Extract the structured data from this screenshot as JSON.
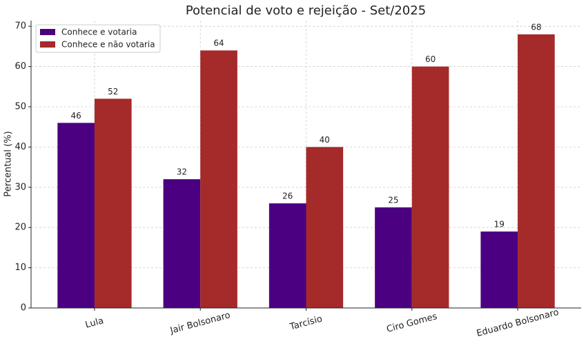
{
  "chart_data": {
    "type": "bar",
    "title": "Potencial de voto e rejeição - Set/2025",
    "y_label": "Percentual (%)",
    "categories": [
      "Lula",
      "Jair Bolsonaro",
      "Tarcísio",
      "Ciro Gomes",
      "Eduardo Bolsonaro"
    ],
    "series": [
      {
        "name": "Conhece e votaria",
        "color": "#4b0082",
        "values": [
          46,
          32,
          26,
          25,
          19
        ]
      },
      {
        "name": "Conhece e não votaria",
        "color": "#a52a2a",
        "values": [
          52,
          64,
          40,
          60,
          68
        ]
      }
    ],
    "ylim": [
      0,
      71.4
    ],
    "yticks": [
      0,
      10,
      20,
      30,
      40,
      50,
      60,
      70
    ],
    "grid": true,
    "legend": "upper-left"
  }
}
